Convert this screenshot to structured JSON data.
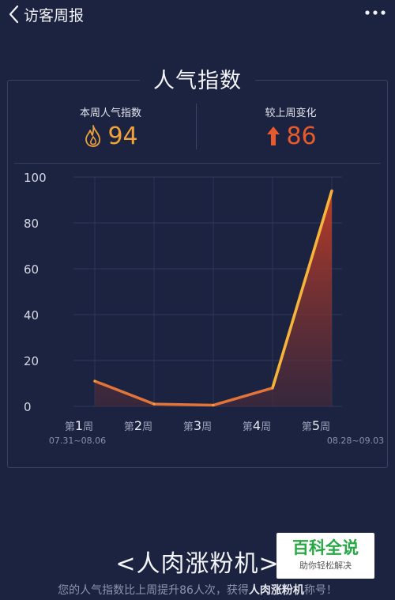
{
  "header": {
    "title": "访客周报",
    "back_icon": "chevron-left-icon",
    "more_icon": "more-dots-icon"
  },
  "card": {
    "title": "人气指数",
    "this_week": {
      "label": "本周人气指数",
      "value": "94",
      "icon": "flame-icon",
      "color": "#f0a23a"
    },
    "change": {
      "label": "较上周变化",
      "value": "86",
      "icon": "arrow-up-icon",
      "color": "#e8592b"
    }
  },
  "chart_data": {
    "type": "area",
    "x_weeks": [
      1,
      2,
      3,
      4,
      5
    ],
    "categories": [
      "1",
      "2",
      "3",
      "4",
      "5"
    ],
    "category_prefix": "第",
    "category_suffix": "周",
    "date_labels": {
      "first": "07.31~08.06",
      "last": "08.28~09.03"
    },
    "values": [
      11,
      1,
      0.5,
      8,
      94
    ],
    "yticks": [
      0,
      20,
      40,
      60,
      80,
      100
    ],
    "ylim": [
      0,
      100
    ],
    "grid": true,
    "line_color": "#f5b53b",
    "fill_color": "#c0402a"
  },
  "footer": {
    "title": "<人肉涨粉机>",
    "text_before": "您的人气指数比上周提升86人次，获得",
    "text_bold": "人肉涨粉机",
    "text_after": "称号！"
  },
  "watermark": {
    "main": "百科全说",
    "sub": "助你轻松解决"
  }
}
